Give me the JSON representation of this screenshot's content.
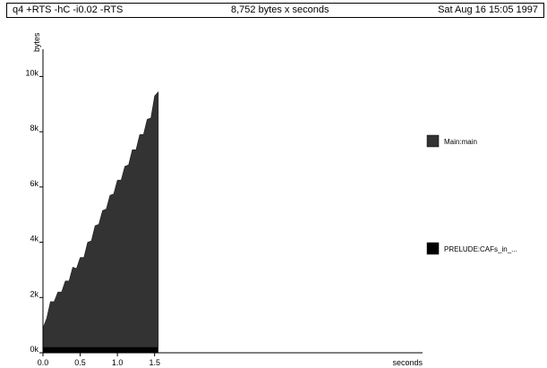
{
  "header": {
    "command": "q4 +RTS -hC -i0.02 -RTS",
    "summary": "8,752 bytes x seconds",
    "date": "Sat Aug 16 15:05 1997"
  },
  "chart_data": {
    "type": "area",
    "xlabel": "seconds",
    "ylabel": "bytes",
    "xlim": [
      0,
      5.1
    ],
    "ylim": [
      0,
      10500
    ],
    "x_ticks": [
      "0.0",
      "0.5",
      "1.0",
      "1.5"
    ],
    "y_ticks": [
      "0k",
      "2k",
      "4k",
      "6k",
      "8k",
      "10k"
    ],
    "legend_position": "right",
    "series": [
      {
        "name": "Main:main",
        "color": "#333333",
        "x": [
          0.0,
          0.05,
          0.1,
          0.15,
          0.2,
          0.25,
          0.3,
          0.35,
          0.4,
          0.45,
          0.5,
          0.55,
          0.6,
          0.65,
          0.7,
          0.75,
          0.8,
          0.85,
          0.9,
          0.95,
          1.0,
          1.05,
          1.1,
          1.15,
          1.2,
          1.25,
          1.3,
          1.35,
          1.4,
          1.45,
          1.5,
          1.55
        ],
        "values": [
          700,
          1300,
          1650,
          1900,
          2000,
          2250,
          2400,
          2650,
          2900,
          3100,
          3250,
          3500,
          3800,
          4100,
          4400,
          4700,
          4950,
          5250,
          5500,
          5800,
          6050,
          6300,
          6550,
          6850,
          7150,
          7400,
          7700,
          7950,
          8250,
          8550,
          9100,
          9500
        ]
      },
      {
        "name": "PRELUDE:CAFs_in_...",
        "color": "#000000",
        "x": [
          0.0,
          1.55
        ],
        "values": [
          200,
          200
        ]
      }
    ]
  }
}
